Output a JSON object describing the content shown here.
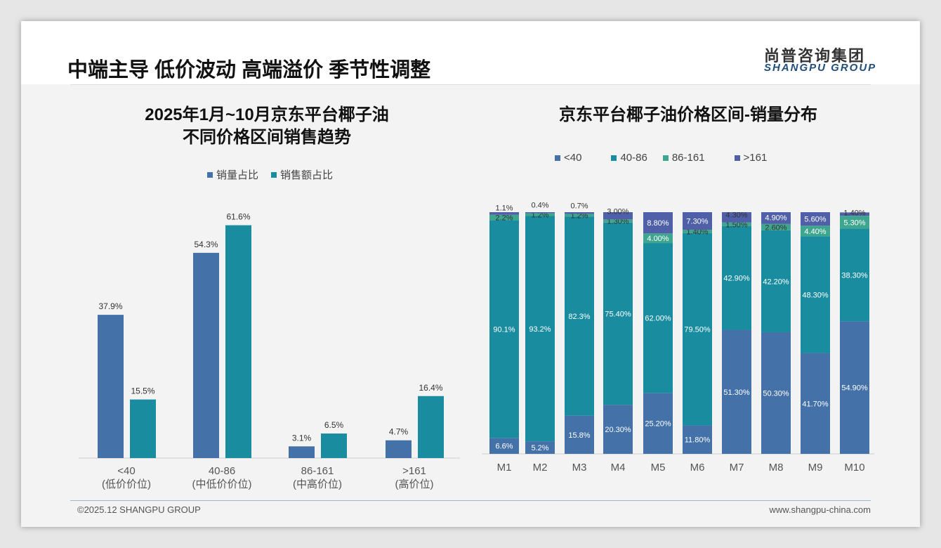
{
  "header": {
    "title": "中端主导 低价波动 高端溢价 季节性调整",
    "logo_cn": "尚普咨询集团",
    "logo_en": "SHANGPU GROUP"
  },
  "watermark": {
    "cn": "尚普咨询集团",
    "en": "SHANGPU GROUP"
  },
  "footer": {
    "copyright": "©2025.12 SHANGPU GROUP",
    "website": "www.shangpu-china.com"
  },
  "colors": {
    "blue": "#4472a8",
    "teal": "#1a8ca0",
    "green": "#3ea68e",
    "purple": "#5060a8"
  },
  "chart_data": [
    {
      "type": "bar",
      "title_line1": "2025年1月~10月京东平台椰子油",
      "title_line2": "不同价格区间销售趋势",
      "categories": [
        "<40",
        "40-86",
        "86-161",
        ">161"
      ],
      "category_sublabels": [
        "(低价价位)",
        "(中低价价位)",
        "(中高价位)",
        "(高价位)"
      ],
      "series": [
        {
          "name": "销量占比",
          "values": [
            37.9,
            54.3,
            3.1,
            4.7
          ],
          "labels": [
            "37.9%",
            "54.3%",
            "3.1%",
            "4.7%"
          ]
        },
        {
          "name": "销售额占比",
          "values": [
            15.5,
            61.6,
            6.5,
            16.4
          ],
          "labels": [
            "15.5%",
            "61.6%",
            "6.5%",
            "16.4%"
          ]
        }
      ],
      "ylim": [
        0,
        70
      ],
      "legend": "top",
      "grid": false
    },
    {
      "type": "bar",
      "stacked": true,
      "title": "京东平台椰子油价格区间-销量分布",
      "categories": [
        "M1",
        "M2",
        "M3",
        "M4",
        "M5",
        "M6",
        "M7",
        "M8",
        "M9",
        "M10"
      ],
      "series": [
        {
          "name": "<40",
          "values": [
            6.6,
            5.2,
            15.8,
            20.3,
            25.2,
            11.8,
            51.3,
            50.3,
            41.7,
            54.9
          ],
          "labels": [
            "6.6%",
            "5.2%",
            "15.8%",
            "20.30%",
            "25.20%",
            "11.80%",
            "51.30%",
            "50.30%",
            "41.70%",
            "54.90%"
          ]
        },
        {
          "name": "40-86",
          "values": [
            90.1,
            93.2,
            82.3,
            75.4,
            62.0,
            79.5,
            42.9,
            42.2,
            48.3,
            38.3
          ],
          "labels": [
            "90.1%",
            "93.2%",
            "82.3%",
            "75.40%",
            "62.00%",
            "79.50%",
            "42.90%",
            "42.20%",
            "48.30%",
            "38.30%"
          ]
        },
        {
          "name": "86-161",
          "values": [
            2.2,
            1.2,
            1.2,
            1.3,
            4.0,
            1.4,
            1.5,
            2.6,
            4.4,
            5.3
          ],
          "labels": [
            "2.2%",
            "1.2%",
            "1.2%",
            "1.30%",
            "4.00%",
            "1.40%",
            "1.50%",
            "2.60%",
            "4.40%",
            "5.30%"
          ]
        },
        {
          "name": ">161",
          "values": [
            1.1,
            0.4,
            0.7,
            3.0,
            8.8,
            7.3,
            4.3,
            4.9,
            5.6,
            1.4
          ],
          "labels": [
            "1.1%",
            "0.4%",
            "0.7%",
            "3.00%",
            "8.80%",
            "7.30%",
            "4.30%",
            "4.90%",
            "5.60%",
            "1.40%"
          ]
        }
      ],
      "ylim": [
        0,
        100
      ],
      "legend": "top",
      "grid": false
    }
  ]
}
